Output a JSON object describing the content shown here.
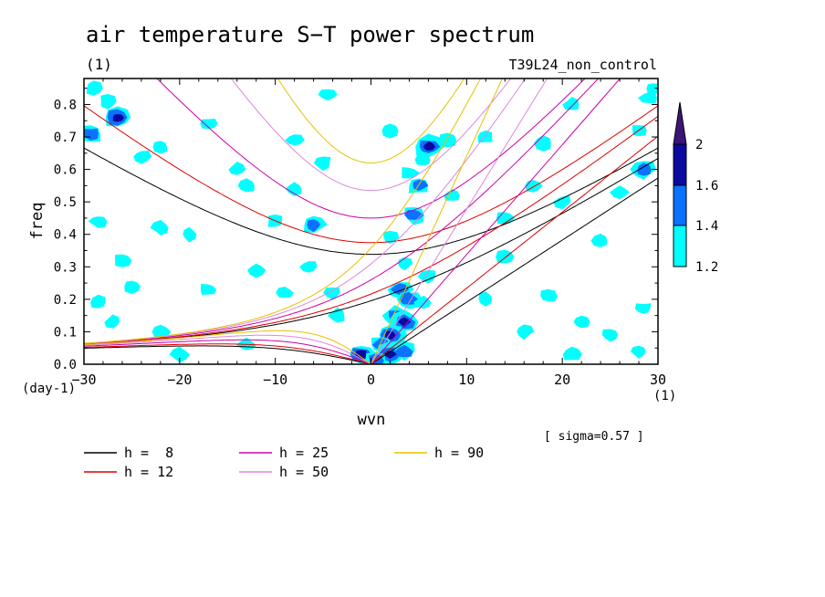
{
  "chart_data": {
    "type": "heatmap",
    "title": "air temperature S−T power spectrum",
    "units_label": "(1)",
    "run_label": "T39L24_non_control",
    "xlabel": "wvn",
    "ylabel": "freq",
    "x_unit": "(1)",
    "y_unit": "(day-1)",
    "xlim": [
      -30,
      30
    ],
    "ylim": [
      0,
      0.88
    ],
    "x_ticks": [
      -30,
      -20,
      -10,
      0,
      10,
      20,
      30
    ],
    "x_tick_labels": [
      "−30",
      "−20",
      "−10",
      "0",
      "10",
      "20",
      "30"
    ],
    "y_ticks": [
      0.0,
      0.1,
      0.2,
      0.3,
      0.4,
      0.5,
      0.6,
      0.7,
      0.8
    ],
    "y_tick_labels": [
      "0.0",
      "0.1",
      "0.2",
      "0.3",
      "0.4",
      "0.5",
      "0.6",
      "0.7",
      "0.8"
    ],
    "sigma_label": "[ sigma=0.57 ]",
    "colorbar": {
      "levels": [
        1.2,
        1.4,
        1.6,
        2
      ],
      "level_labels": [
        "1.2",
        "1.4",
        "1.6",
        "2"
      ],
      "colors": [
        "#00ffff",
        "#0a72ff",
        "#0a0aa0",
        "#3c1478"
      ]
    },
    "contour_patches": [
      {
        "x": -29,
        "y": 0.85,
        "level": 1
      },
      {
        "x": -27.5,
        "y": 0.81,
        "level": 1
      },
      {
        "x": -26.5,
        "y": 0.76,
        "level": 3
      },
      {
        "x": -29.3,
        "y": 0.71,
        "level": 2
      },
      {
        "x": -22,
        "y": 0.67,
        "level": 1
      },
      {
        "x": -24,
        "y": 0.64,
        "level": 1
      },
      {
        "x": -17,
        "y": 0.74,
        "level": 1
      },
      {
        "x": -14,
        "y": 0.6,
        "level": 1
      },
      {
        "x": -13,
        "y": 0.55,
        "level": 1
      },
      {
        "x": -8,
        "y": 0.54,
        "level": 1
      },
      {
        "x": -5,
        "y": 0.62,
        "level": 1
      },
      {
        "x": -8,
        "y": 0.69,
        "level": 1
      },
      {
        "x": -4.5,
        "y": 0.83,
        "level": 1
      },
      {
        "x": -28.5,
        "y": 0.44,
        "level": 1
      },
      {
        "x": -22,
        "y": 0.42,
        "level": 1
      },
      {
        "x": -19,
        "y": 0.4,
        "level": 1
      },
      {
        "x": -10,
        "y": 0.44,
        "level": 1
      },
      {
        "x": -6,
        "y": 0.43,
        "level": 2
      },
      {
        "x": -26,
        "y": 0.32,
        "level": 1
      },
      {
        "x": -25,
        "y": 0.24,
        "level": 1
      },
      {
        "x": -17,
        "y": 0.23,
        "level": 1
      },
      {
        "x": -28.5,
        "y": 0.19,
        "level": 1
      },
      {
        "x": -27,
        "y": 0.13,
        "level": 1
      },
      {
        "x": -22,
        "y": 0.1,
        "level": 1
      },
      {
        "x": -12,
        "y": 0.29,
        "level": 1
      },
      {
        "x": -9,
        "y": 0.22,
        "level": 1
      },
      {
        "x": -6.5,
        "y": 0.3,
        "level": 1
      },
      {
        "x": -4,
        "y": 0.22,
        "level": 1
      },
      {
        "x": -3.5,
        "y": 0.15,
        "level": 1
      },
      {
        "x": -20,
        "y": 0.03,
        "level": 1
      },
      {
        "x": -13,
        "y": 0.06,
        "level": 1
      },
      {
        "x": 2,
        "y": 0.39,
        "level": 1
      },
      {
        "x": 3.5,
        "y": 0.31,
        "level": 1
      },
      {
        "x": 4.5,
        "y": 0.46,
        "level": 2
      },
      {
        "x": 5,
        "y": 0.55,
        "level": 2
      },
      {
        "x": 4,
        "y": 0.59,
        "level": 1
      },
      {
        "x": 6,
        "y": 0.67,
        "level": 3
      },
      {
        "x": 8,
        "y": 0.69,
        "level": 1
      },
      {
        "x": 2,
        "y": 0.72,
        "level": 1
      },
      {
        "x": 8.5,
        "y": 0.52,
        "level": 1
      },
      {
        "x": 5.5,
        "y": 0.63,
        "level": 1
      },
      {
        "x": 3,
        "y": 0.23,
        "level": 2
      },
      {
        "x": 4,
        "y": 0.2,
        "level": 2
      },
      {
        "x": 2.5,
        "y": 0.15,
        "level": 2
      },
      {
        "x": 3.5,
        "y": 0.13,
        "level": 3
      },
      {
        "x": 5.5,
        "y": 0.19,
        "level": 1
      },
      {
        "x": 6,
        "y": 0.27,
        "level": 1
      },
      {
        "x": 2,
        "y": 0.09,
        "level": 3
      },
      {
        "x": 1,
        "y": 0.06,
        "level": 2
      },
      {
        "x": -1,
        "y": 0.03,
        "level": 3
      },
      {
        "x": 2,
        "y": 0.03,
        "level": 3
      },
      {
        "x": 3.5,
        "y": 0.04,
        "level": 2
      },
      {
        "x": 0.5,
        "y": 0.01,
        "level": 2
      },
      {
        "x": 12,
        "y": 0.7,
        "level": 1
      },
      {
        "x": 14,
        "y": 0.45,
        "level": 1
      },
      {
        "x": 17,
        "y": 0.55,
        "level": 1
      },
      {
        "x": 20,
        "y": 0.5,
        "level": 1
      },
      {
        "x": 18,
        "y": 0.68,
        "level": 1
      },
      {
        "x": 21,
        "y": 0.8,
        "level": 1
      },
      {
        "x": 24,
        "y": 0.38,
        "level": 1
      },
      {
        "x": 26,
        "y": 0.53,
        "level": 1
      },
      {
        "x": 28.5,
        "y": 0.6,
        "level": 2
      },
      {
        "x": 29,
        "y": 0.82,
        "level": 1
      },
      {
        "x": 28,
        "y": 0.72,
        "level": 1
      },
      {
        "x": 29.5,
        "y": 0.85,
        "level": 1
      },
      {
        "x": 12,
        "y": 0.2,
        "level": 1
      },
      {
        "x": 16,
        "y": 0.1,
        "level": 1
      },
      {
        "x": 18.5,
        "y": 0.21,
        "level": 1
      },
      {
        "x": 22,
        "y": 0.13,
        "level": 1
      },
      {
        "x": 25,
        "y": 0.09,
        "level": 1
      },
      {
        "x": 28,
        "y": 0.04,
        "level": 1
      },
      {
        "x": 28.5,
        "y": 0.17,
        "level": 1
      },
      {
        "x": 21,
        "y": 0.03,
        "level": 1
      },
      {
        "x": 14,
        "y": 0.33,
        "level": 1
      }
    ],
    "legend": [
      {
        "label": "h =  8",
        "color": "#000000"
      },
      {
        "label": "h = 12",
        "color": "#dd0000"
      },
      {
        "label": "h = 25",
        "color": "#cc00aa"
      },
      {
        "label": "h = 50",
        "color": "#dd88dd"
      },
      {
        "label": "h = 90",
        "color": "#e8c000"
      }
    ],
    "dispersion_curves": [
      {
        "label": "h =  8",
        "color": "#000000",
        "equivalent_depth_m": 8
      },
      {
        "label": "h = 12",
        "color": "#dd0000",
        "equivalent_depth_m": 12
      },
      {
        "label": "h = 25",
        "color": "#cc00aa",
        "equivalent_depth_m": 25
      },
      {
        "label": "h = 50",
        "color": "#dd88dd",
        "equivalent_depth_m": 50
      },
      {
        "label": "h = 90",
        "color": "#e8c000",
        "equivalent_depth_m": 90
      }
    ]
  }
}
